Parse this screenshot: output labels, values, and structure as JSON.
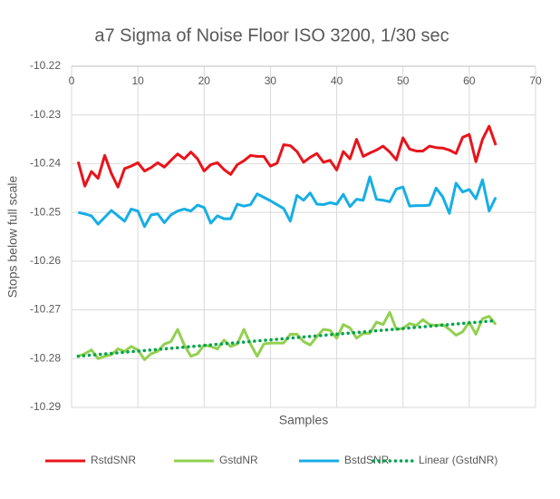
{
  "chart_data": {
    "type": "line",
    "title": "a7 Sigma of Noise Floor ISO 3200, 1/30 sec",
    "x_label": "Samples",
    "y_label": "Stops below full scale",
    "x": [
      1,
      2,
      3,
      4,
      5,
      6,
      7,
      8,
      9,
      10,
      11,
      12,
      13,
      14,
      15,
      16,
      17,
      18,
      19,
      20,
      21,
      22,
      23,
      24,
      25,
      26,
      27,
      28,
      29,
      30,
      31,
      32,
      33,
      34,
      35,
      36,
      37,
      38,
      39,
      40,
      41,
      42,
      43,
      44,
      45,
      46,
      47,
      48,
      49,
      50,
      51,
      52,
      53,
      54,
      55,
      56,
      57,
      58,
      59,
      60,
      61,
      62,
      63,
      64
    ],
    "xlim": [
      0,
      70
    ],
    "xticks": [
      0,
      10,
      20,
      30,
      40,
      50,
      60,
      70
    ],
    "ylim": [
      -10.29,
      -10.22
    ],
    "yticks": [
      -10.22,
      -10.23,
      -10.24,
      -10.25,
      -10.26,
      -10.27,
      -10.28,
      -10.29
    ],
    "grid": true,
    "legend": "bottom",
    "series": [
      {
        "name": "RstdSNR",
        "color": "#e8141b",
        "values": [
          -10.2396,
          -10.2446,
          -10.2416,
          -10.243,
          -10.2383,
          -10.242,
          -10.2448,
          -10.241,
          -10.2405,
          -10.2398,
          -10.2415,
          -10.2408,
          -10.2398,
          -10.2407,
          -10.2393,
          -10.238,
          -10.239,
          -10.2376,
          -10.239,
          -10.2415,
          -10.2402,
          -10.2398,
          -10.2412,
          -10.2422,
          -10.2402,
          -10.2394,
          -10.2383,
          -10.2385,
          -10.2385,
          -10.2405,
          -10.2399,
          -10.2361,
          -10.2363,
          -10.2375,
          -10.2397,
          -10.2387,
          -10.2379,
          -10.2397,
          -10.2393,
          -10.2413,
          -10.2375,
          -10.239,
          -10.235,
          -10.2385,
          -10.2378,
          -10.2372,
          -10.2364,
          -10.2376,
          -10.2392,
          -10.2347,
          -10.237,
          -10.2374,
          -10.2374,
          -10.2364,
          -10.2367,
          -10.2368,
          -10.2372,
          -10.2379,
          -10.2346,
          -10.234,
          -10.2396,
          -10.235,
          -10.2323,
          -10.2362
        ]
      },
      {
        "name": "GstdNR",
        "color": "#92d050",
        "values": [
          -10.2795,
          -10.279,
          -10.2782,
          -10.28,
          -10.2795,
          -10.2792,
          -10.278,
          -10.2785,
          -10.2775,
          -10.2782,
          -10.2802,
          -10.279,
          -10.2785,
          -10.277,
          -10.2765,
          -10.274,
          -10.2772,
          -10.2795,
          -10.279,
          -10.2772,
          -10.2775,
          -10.278,
          -10.2762,
          -10.2775,
          -10.277,
          -10.274,
          -10.277,
          -10.2795,
          -10.277,
          -10.2768,
          -10.2768,
          -10.2768,
          -10.275,
          -10.275,
          -10.2765,
          -10.2772,
          -10.2755,
          -10.274,
          -10.2742,
          -10.2758,
          -10.273,
          -10.2737,
          -10.2758,
          -10.2748,
          -10.2748,
          -10.2725,
          -10.273,
          -10.2705,
          -10.274,
          -10.2738,
          -10.2728,
          -10.2732,
          -10.272,
          -10.273,
          -10.2732,
          -10.273,
          -10.274,
          -10.2752,
          -10.2745,
          -10.2725,
          -10.275,
          -10.2718,
          -10.2713,
          -10.273
        ]
      },
      {
        "name": "BstdSNR",
        "color": "#17aee4",
        "values": [
          -10.25,
          -10.2503,
          -10.2507,
          -10.2524,
          -10.251,
          -10.2496,
          -10.2507,
          -10.2518,
          -10.2493,
          -10.2497,
          -10.2529,
          -10.2505,
          -10.2503,
          -10.2521,
          -10.2505,
          -10.2497,
          -10.2493,
          -10.2497,
          -10.2485,
          -10.249,
          -10.2522,
          -10.2507,
          -10.2513,
          -10.2513,
          -10.2483,
          -10.2487,
          -10.2484,
          -10.2462,
          -10.2469,
          -10.2476,
          -10.2484,
          -10.2492,
          -10.2518,
          -10.2465,
          -10.2475,
          -10.246,
          -10.2483,
          -10.2484,
          -10.248,
          -10.2483,
          -10.2463,
          -10.2488,
          -10.2473,
          -10.2475,
          -10.2427,
          -10.2473,
          -10.2475,
          -10.2478,
          -10.2452,
          -10.2448,
          -10.2487,
          -10.2486,
          -10.2486,
          -10.2485,
          -10.245,
          -10.2468,
          -10.2502,
          -10.244,
          -10.2458,
          -10.2453,
          -10.2472,
          -10.2433,
          -10.2497,
          -10.2469
        ]
      }
    ],
    "trendline": {
      "name": "Linear (GstdNR)",
      "color": "#00a44c",
      "style": "dotted",
      "x": [
        1,
        64
      ],
      "values": [
        -10.2795,
        -10.2722
      ]
    }
  }
}
